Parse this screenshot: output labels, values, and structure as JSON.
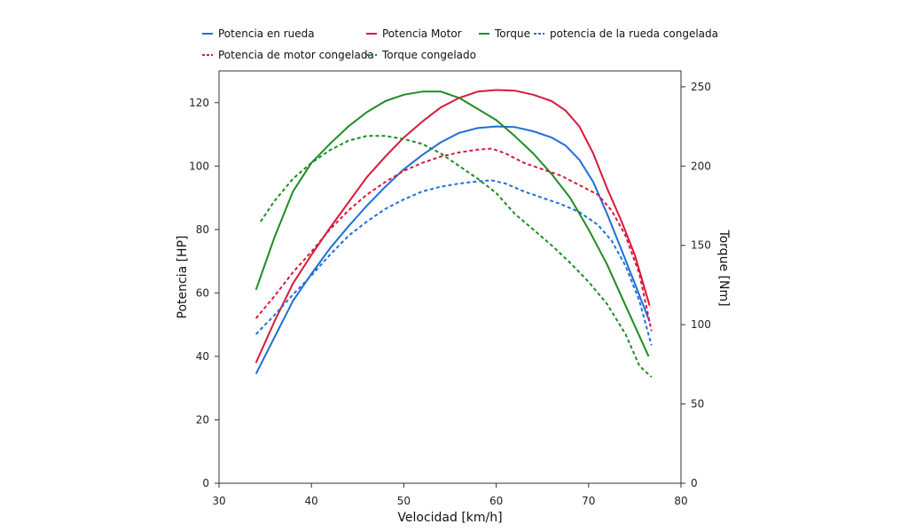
{
  "chart_data": {
    "type": "line",
    "xlabel": "Velocidad [km/h]",
    "ylabel_left": "Potencia [HP]",
    "ylabel_right": "Torque [Nm]",
    "xlim": [
      30,
      80
    ],
    "ylim_left": [
      0,
      130
    ],
    "ylim_right": [
      0,
      260
    ],
    "x_ticks": [
      30,
      40,
      50,
      60,
      70,
      80
    ],
    "y_left_ticks": [
      0,
      20,
      40,
      60,
      80,
      100,
      120
    ],
    "y_right_ticks": [
      0,
      50,
      100,
      150,
      200,
      250
    ],
    "grid": false,
    "legend_position": "top",
    "series": [
      {
        "name": "Potencia en rueda",
        "axis": "left",
        "color": "#1f6fd8",
        "dash": "solid",
        "x": [
          34,
          36,
          38,
          40,
          42,
          44,
          46,
          48,
          50,
          52,
          54,
          56,
          58,
          60,
          62,
          64,
          66,
          67.5,
          69,
          70.5,
          72,
          73.5,
          75,
          76.6
        ],
        "y": [
          34.5,
          46,
          57.5,
          66,
          74,
          81,
          87.5,
          93.5,
          99,
          103.5,
          107.5,
          110.5,
          112,
          112.5,
          112.3,
          111,
          109,
          106.5,
          102,
          95,
          85,
          74,
          63,
          51
        ]
      },
      {
        "name": "Potencia Motor",
        "axis": "left",
        "color": "#d8193b",
        "dash": "solid",
        "x": [
          34,
          36,
          38,
          40,
          42,
          44,
          46,
          48,
          50,
          52,
          54,
          56,
          58,
          60,
          62,
          64,
          66,
          67.5,
          69,
          70.5,
          72,
          73.5,
          75,
          76.6
        ],
        "y": [
          38,
          51,
          63,
          72,
          80.5,
          88.5,
          96.5,
          103,
          109,
          114,
          118.5,
          121.5,
          123.5,
          124,
          123.8,
          122.5,
          120.5,
          117.5,
          112.5,
          104,
          93,
          83,
          72,
          56
        ]
      },
      {
        "name": "Torque",
        "axis": "right",
        "color": "#1e8c23",
        "dash": "solid",
        "x": [
          34,
          36,
          38,
          40,
          42,
          44,
          46,
          48,
          50,
          52,
          54,
          56,
          58,
          60,
          62,
          64,
          66,
          68,
          70,
          72,
          74,
          76.5
        ],
        "y": [
          122,
          155,
          184,
          202,
          214,
          225,
          234,
          241,
          245,
          247,
          247,
          243,
          236,
          229,
          219,
          208,
          195,
          180,
          160,
          138,
          112,
          80
        ]
      },
      {
        "name": "potencia de la rueda congelada",
        "axis": "left",
        "color": "#1f6fd8",
        "dash": "dashed",
        "x": [
          34,
          36,
          38,
          40,
          42,
          44,
          46,
          48,
          50,
          52,
          54,
          56,
          58,
          59.5,
          61,
          63,
          65,
          67,
          69,
          71,
          72.5,
          74,
          75.5,
          76.8
        ],
        "y": [
          47,
          53,
          59.5,
          65.5,
          72,
          78,
          82.5,
          86.5,
          89.5,
          92,
          93.5,
          94.5,
          95.2,
          95.5,
          94.5,
          92,
          90,
          88,
          85.5,
          81.5,
          76.5,
          68.5,
          57.5,
          43.5
        ]
      },
      {
        "name": "Potencia de motor congelada",
        "axis": "left",
        "color": "#d8193b",
        "dash": "dashed",
        "x": [
          34,
          36,
          38,
          40,
          42,
          44,
          46,
          48,
          50,
          52,
          54,
          56,
          58,
          59.5,
          61,
          63,
          65,
          67,
          69,
          71,
          72.5,
          74,
          75.5,
          76.8
        ],
        "y": [
          52,
          59,
          66.5,
          73,
          80,
          86,
          91,
          95,
          98.5,
          101,
          103,
          104.3,
          105.2,
          105.5,
          104,
          101,
          99,
          97,
          94,
          91,
          86,
          78,
          66,
          48
        ]
      },
      {
        "name": "Torque congelado",
        "axis": "right",
        "color": "#1e8c23",
        "dash": "dashed",
        "x": [
          34.5,
          36,
          38,
          40,
          42,
          44,
          46,
          48,
          50,
          52,
          54,
          56,
          58,
          60,
          62,
          64,
          66,
          68,
          70,
          72,
          74,
          75.5,
          76.8
        ],
        "y": [
          165,
          178,
          192,
          202,
          210,
          216,
          219,
          219,
          217,
          214,
          208,
          200,
          192,
          183,
          170,
          160,
          150,
          139,
          127,
          113,
          94,
          74,
          67
        ]
      }
    ]
  }
}
